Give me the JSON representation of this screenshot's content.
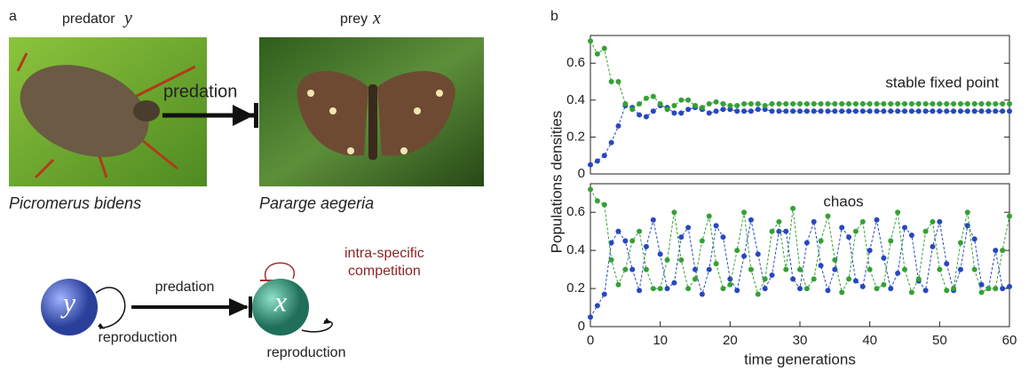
{
  "panel_a": {
    "label": "a",
    "predator": "predator",
    "predator_symbol": "y",
    "prey": "prey",
    "prey_symbol": "x",
    "arrow_label": "predation",
    "predator_species": "Picromerus bidens",
    "prey_species": "Pararge aegeria",
    "diagram": {
      "node_y": "y",
      "node_x": "x",
      "edge_label": "predation",
      "self_loop_label_1": "intra-specific",
      "self_loop_label_2": "competition",
      "reproduction_y": "reproduction",
      "reproduction_x": "reproduction"
    }
  },
  "panel_b": {
    "label": "b",
    "ylabel": "Populations densities",
    "xlabel": "time generations"
  },
  "chart_data": [
    {
      "type": "scatter-line",
      "annotation": "stable fixed point",
      "x": [
        0,
        1,
        2,
        3,
        4,
        5,
        6,
        7,
        8,
        9,
        10,
        11,
        12,
        13,
        14,
        15,
        16,
        17,
        18,
        19,
        20,
        21,
        22,
        23,
        24,
        25,
        26,
        27,
        28,
        29,
        30,
        31,
        32,
        33,
        34,
        35,
        36,
        37,
        38,
        39,
        40,
        41,
        42,
        43,
        44,
        45,
        46,
        47,
        48,
        49,
        50,
        51,
        52,
        53,
        54,
        55,
        56,
        57,
        58,
        59,
        60
      ],
      "xlim": [
        0,
        60
      ],
      "ylim": [
        0,
        0.75
      ],
      "yticks": [
        0,
        0.2,
        0.4,
        0.6
      ],
      "series": [
        {
          "color": "#2748c0",
          "values": [
            0.05,
            0.07,
            0.1,
            0.17,
            0.26,
            0.37,
            0.36,
            0.32,
            0.31,
            0.34,
            0.37,
            0.36,
            0.33,
            0.33,
            0.35,
            0.36,
            0.35,
            0.33,
            0.34,
            0.35,
            0.35,
            0.34,
            0.34,
            0.34,
            0.35,
            0.35,
            0.34,
            0.34,
            0.34,
            0.34,
            0.34,
            0.34,
            0.34,
            0.34,
            0.34,
            0.34,
            0.34,
            0.34,
            0.34,
            0.34,
            0.34,
            0.34,
            0.34,
            0.34,
            0.34,
            0.34,
            0.34,
            0.34,
            0.34,
            0.34,
            0.34,
            0.34,
            0.34,
            0.34,
            0.34,
            0.34,
            0.34,
            0.34,
            0.34,
            0.34,
            0.34
          ]
        },
        {
          "color": "#35a035",
          "values": [
            0.72,
            0.65,
            0.68,
            0.5,
            0.5,
            0.38,
            0.35,
            0.38,
            0.41,
            0.42,
            0.38,
            0.35,
            0.37,
            0.4,
            0.4,
            0.37,
            0.36,
            0.38,
            0.39,
            0.38,
            0.37,
            0.37,
            0.38,
            0.38,
            0.38,
            0.37,
            0.38,
            0.38,
            0.38,
            0.38,
            0.38,
            0.38,
            0.38,
            0.38,
            0.38,
            0.38,
            0.38,
            0.38,
            0.38,
            0.38,
            0.38,
            0.38,
            0.38,
            0.38,
            0.38,
            0.38,
            0.38,
            0.38,
            0.38,
            0.38,
            0.38,
            0.38,
            0.38,
            0.38,
            0.38,
            0.38,
            0.38,
            0.38,
            0.38,
            0.38,
            0.38
          ]
        }
      ]
    },
    {
      "type": "scatter-line",
      "annotation": "chaos",
      "x": [
        0,
        1,
        2,
        3,
        4,
        5,
        6,
        7,
        8,
        9,
        10,
        11,
        12,
        13,
        14,
        15,
        16,
        17,
        18,
        19,
        20,
        21,
        22,
        23,
        24,
        25,
        26,
        27,
        28,
        29,
        30,
        31,
        32,
        33,
        34,
        35,
        36,
        37,
        38,
        39,
        40,
        41,
        42,
        43,
        44,
        45,
        46,
        47,
        48,
        49,
        50,
        51,
        52,
        53,
        54,
        55,
        56,
        57,
        58,
        59,
        60
      ],
      "xlim": [
        0,
        60
      ],
      "xticks": [
        0,
        10,
        20,
        30,
        40,
        50,
        60
      ],
      "ylim": [
        0,
        0.75
      ],
      "yticks": [
        0,
        0.2,
        0.4,
        0.6
      ],
      "series": [
        {
          "color": "#2748c0",
          "values": [
            0.05,
            0.11,
            0.17,
            0.44,
            0.5,
            0.45,
            0.3,
            0.19,
            0.42,
            0.56,
            0.38,
            0.2,
            0.23,
            0.47,
            0.52,
            0.3,
            0.17,
            0.3,
            0.53,
            0.47,
            0.25,
            0.19,
            0.37,
            0.56,
            0.38,
            0.2,
            0.27,
            0.5,
            0.5,
            0.25,
            0.2,
            0.44,
            0.55,
            0.32,
            0.19,
            0.3,
            0.52,
            0.47,
            0.24,
            0.21,
            0.4,
            0.56,
            0.36,
            0.2,
            0.28,
            0.52,
            0.48,
            0.24,
            0.19,
            0.42,
            0.55,
            0.33,
            0.19,
            0.3,
            0.53,
            0.46,
            0.22,
            0.2,
            0.4,
            0.2,
            0.21
          ]
        },
        {
          "color": "#35a035",
          "values": [
            0.72,
            0.66,
            0.64,
            0.35,
            0.22,
            0.3,
            0.45,
            0.5,
            0.3,
            0.2,
            0.2,
            0.35,
            0.6,
            0.35,
            0.2,
            0.25,
            0.45,
            0.58,
            0.33,
            0.2,
            0.22,
            0.4,
            0.6,
            0.3,
            0.17,
            0.25,
            0.5,
            0.55,
            0.3,
            0.62,
            0.3,
            0.2,
            0.25,
            0.45,
            0.58,
            0.35,
            0.18,
            0.25,
            0.5,
            0.55,
            0.3,
            0.2,
            0.22,
            0.45,
            0.6,
            0.3,
            0.18,
            0.25,
            0.5,
            0.55,
            0.3,
            0.19,
            0.2,
            0.44,
            0.6,
            0.3,
            0.18,
            0.2,
            0.2,
            0.4,
            0.58
          ]
        }
      ]
    }
  ]
}
